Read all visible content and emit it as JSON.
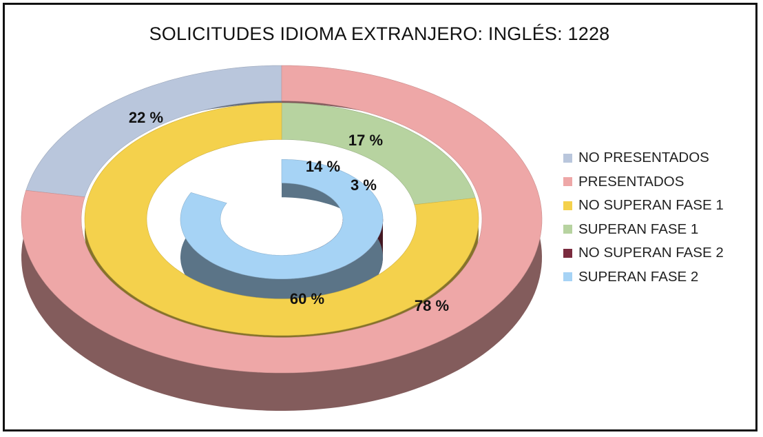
{
  "chart_data": {
    "type": "pie",
    "variant": "3d-doughnut",
    "title": "SOLICITUDES IDIOMA EXTRANJERO: INGLÉS: 1228",
    "legend_position": "right",
    "rings": [
      {
        "name": "outer",
        "slices": [
          {
            "label": "NO PRESENTADOS",
            "value": 22,
            "display": "22 %",
            "color": "#b9c6dc"
          },
          {
            "label": "PRESENTADOS",
            "value": 78,
            "display": "78 %",
            "color": "#eea7a7"
          }
        ]
      },
      {
        "name": "middle",
        "slices": [
          {
            "label": "SUPERAN FASE 1",
            "value": 17,
            "display": "17 %",
            "color": "#b7d3a0"
          },
          {
            "label": "NO SUPERAN FASE 1",
            "value": 60,
            "display": "60 %",
            "color": "#f4d14c"
          }
        ]
      },
      {
        "name": "inner",
        "slices": [
          {
            "label": "NO SUPERAN FASE 2",
            "value": 3,
            "display": "3 %",
            "color": "#7a2b3e"
          },
          {
            "label": "SUPERAN FASE 2",
            "value": 14,
            "display": "14 %",
            "color": "#a6d3f5"
          }
        ]
      }
    ],
    "legend": [
      {
        "label": "NO PRESENTADOS",
        "color": "#b9c6dc"
      },
      {
        "label": "PRESENTADOS",
        "color": "#eea7a7"
      },
      {
        "label": "NO SUPERAN FASE 1",
        "color": "#f4d14c"
      },
      {
        "label": "SUPERAN FASE 1",
        "color": "#b7d3a0"
      },
      {
        "label": "NO SUPERAN FASE 2",
        "color": "#7a2b3e"
      },
      {
        "label": "SUPERAN FASE 2",
        "color": "#a6d3f5"
      }
    ]
  }
}
